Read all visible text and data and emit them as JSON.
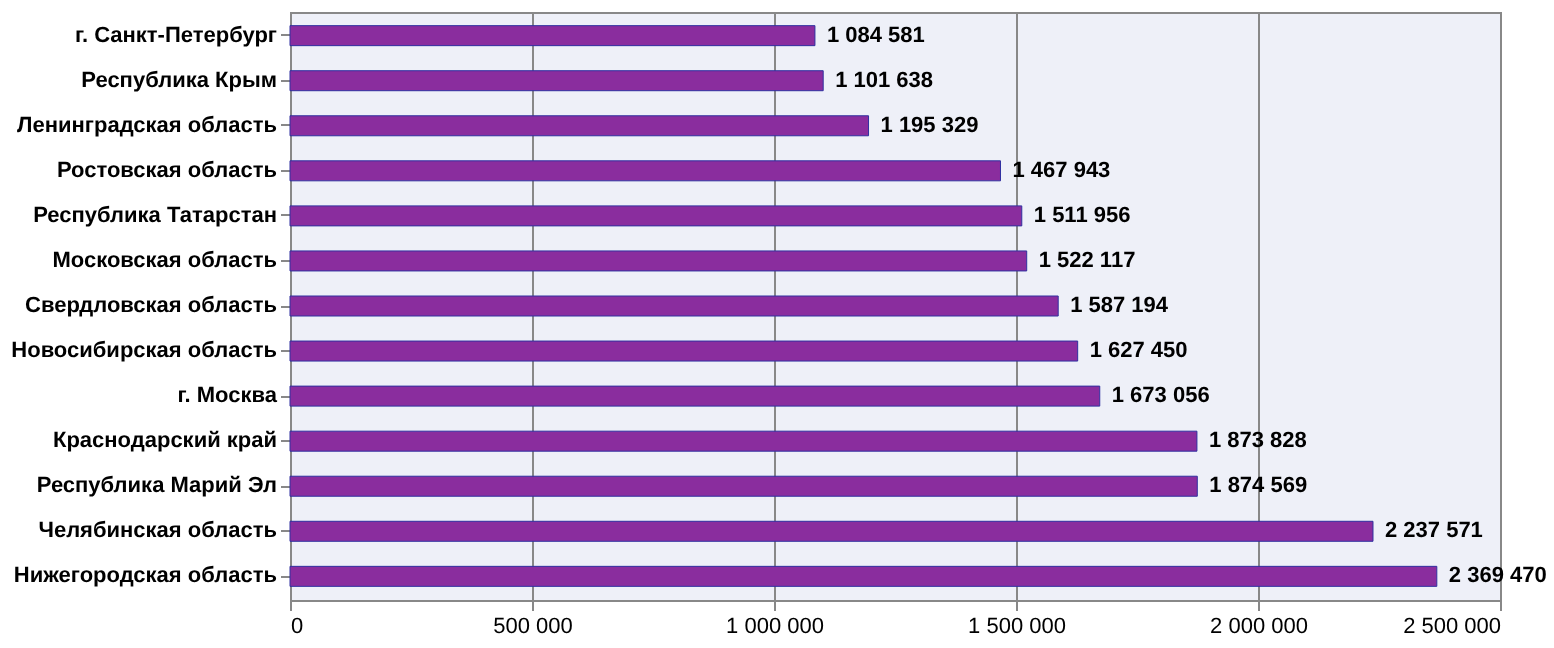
{
  "chart_data": {
    "type": "bar",
    "orientation": "horizontal",
    "categories": [
      "г. Санкт-Петербург",
      "Республика Крым",
      "Ленинградская область",
      "Ростовская область",
      "Республика Татарстан",
      "Московская область",
      "Свердловская область",
      "Новосибирская область",
      "г. Москва",
      "Краснодарский край",
      "Республика Марий Эл",
      "Челябинская область",
      "Нижегородская область"
    ],
    "values": [
      1084581,
      1101638,
      1195329,
      1467943,
      1511956,
      1522117,
      1587194,
      1627450,
      1673056,
      1873828,
      1874569,
      2237571,
      2369470
    ],
    "value_labels": [
      "1 084 581",
      "1 101 638",
      "1 195 329",
      "1 467 943",
      "1 511 956",
      "1 522 117",
      "1 587 194",
      "1 627 450",
      "1 673 056",
      "1 873 828",
      "1 874 569",
      "2 237 571",
      "2 369 470"
    ],
    "color": "#8a2d9e",
    "xlim": [
      0,
      2500000
    ],
    "xticks": [
      0,
      {
        "value": 500000,
        "label": "500 000"
      },
      {
        "value": 1000000,
        "label": "1 000 000"
      },
      {
        "value": 1500000,
        "label": "1 500 000"
      },
      {
        "value": 2000000,
        "label": "2 000 000"
      },
      {
        "value": 2500000,
        "label": "2 500 000"
      }
    ],
    "grid": "x"
  }
}
